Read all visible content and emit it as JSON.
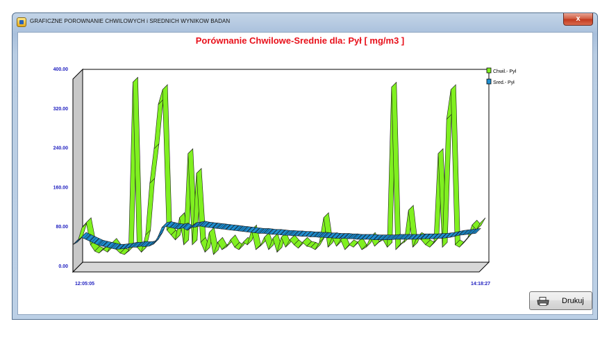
{
  "window": {
    "title": "GRAFICZNE POROWNANIE CHWILOWYCH i SREDNICH WYNIKOW BADAN",
    "close_label": "x"
  },
  "print_button": {
    "label": "Drukuj",
    "icon": "printer-icon"
  },
  "chart_data": {
    "type": "line",
    "style": "3d-ribbon",
    "title": "Porównanie Chwilowe-Srednie dla: Pył  [ mg/m3 ]",
    "ylim": [
      0,
      400
    ],
    "yticks": [
      "0.00",
      "80.00",
      "160.00",
      "240.00",
      "320.00",
      "400.00"
    ],
    "xtick_labels": [
      "12:05:05",
      "14:18:27"
    ],
    "grid": false,
    "legend_position": "top-right",
    "colors": {
      "chwil": "#80f020",
      "sred": "#1f8fd0",
      "title": "#e8101a",
      "ticks": "#2020c0"
    },
    "series": [
      {
        "name": "Chwil.- Pył",
        "values": [
          72,
          100,
          110,
          65,
          52,
          48,
          55,
          50,
          68,
          56,
          48,
          45,
          52,
          395,
          60,
          50,
          85,
          190,
          260,
          350,
          380,
          95,
          85,
          75,
          120,
          65,
          250,
          65,
          210,
          70,
          50,
          90,
          45,
          70,
          55,
          60,
          75,
          60,
          55,
          70,
          65,
          95,
          55,
          62,
          80,
          55,
          78,
          50,
          80,
          60,
          75,
          65,
          58,
          70,
          62,
          60,
          55,
          70,
          120,
          60,
          80,
          62,
          75,
          55,
          65,
          60,
          70,
          55,
          60,
          80,
          62,
          70,
          75,
          60,
          385,
          55,
          65,
          70,
          135,
          60,
          80,
          75,
          65,
          60,
          70,
          250,
          60,
          320,
          380,
          65,
          60,
          70,
          80,
          105,
          95,
          110
        ]
      },
      {
        "name": "Sred.- Pył",
        "values": [
          75,
          80,
          90,
          86,
          82,
          78,
          74,
          72,
          70,
          68,
          66,
          66,
          67,
          68,
          70,
          70,
          72,
          71,
          72,
          76,
          90,
          110,
          112,
          110,
          108,
          107,
          109,
          104,
          110,
          111,
          113,
          111,
          110,
          109,
          108,
          107,
          106,
          105,
          104,
          103,
          102,
          101,
          100,
          99,
          98,
          98,
          97,
          96,
          96,
          95,
          94,
          94,
          93,
          93,
          92,
          92,
          91,
          91,
          90,
          90,
          89,
          89,
          88,
          88,
          88,
          87,
          87,
          86,
          86,
          86,
          86,
          85,
          85,
          85,
          85,
          85,
          86,
          86,
          86,
          86,
          86,
          86,
          87,
          87,
          87,
          87,
          88,
          88,
          89,
          90,
          92,
          94,
          95,
          96,
          97,
          98
        ]
      }
    ]
  }
}
